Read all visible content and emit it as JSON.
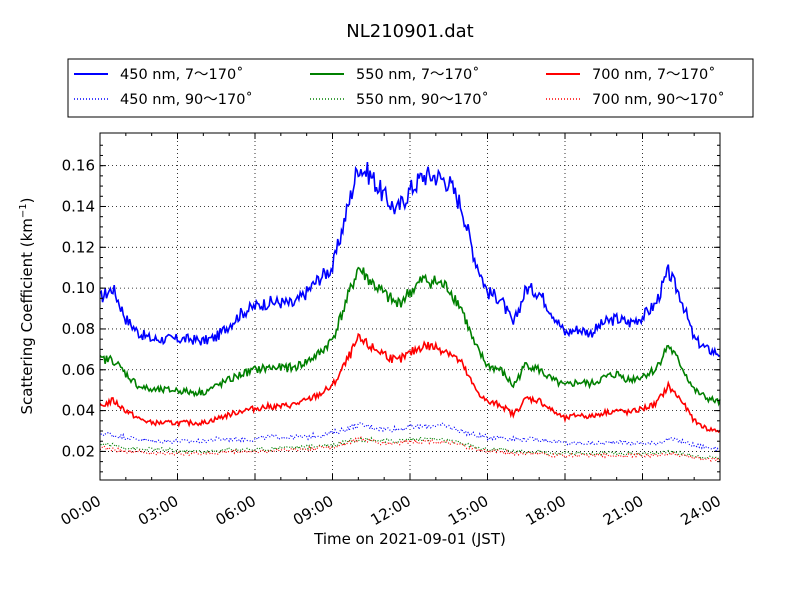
{
  "chart_data": {
    "type": "line",
    "title": "NL210901.dat",
    "xlabel": "Time on 2021-09-01 (JST)",
    "ylabel": "Scattering Coefficient (km",
    "ylabel_superscript": "−1",
    "ylabel_suffix": ")",
    "xlim": [
      "00:00",
      "24:00"
    ],
    "ylim": [
      0.006,
      0.176
    ],
    "x_ticks": [
      "00:00",
      "03:00",
      "06:00",
      "09:00",
      "12:00",
      "15:00",
      "18:00",
      "21:00",
      "24:00"
    ],
    "y_ticks": [
      "0.02",
      "0.04",
      "0.06",
      "0.08",
      "0.10",
      "0.12",
      "0.14",
      "0.16"
    ],
    "grid": true,
    "legend_position": "top-center",
    "x_hours": [
      0,
      0.5,
      1,
      1.5,
      2,
      2.5,
      3,
      3.5,
      4,
      4.5,
      5,
      5.5,
      6,
      6.5,
      7,
      7.5,
      8,
      8.5,
      9,
      9.5,
      10,
      10.5,
      11,
      11.5,
      12,
      12.5,
      13,
      13.5,
      14,
      14.5,
      15,
      15.5,
      16,
      16.5,
      17,
      17.5,
      18,
      18.5,
      19,
      19.5,
      20,
      20.5,
      21,
      21.5,
      22,
      22.5,
      23,
      23.5,
      24
    ],
    "series": [
      {
        "name": "450 nm, 7～170˚",
        "color": "#0000ff",
        "style": "solid",
        "values": [
          0.095,
          0.1,
          0.085,
          0.078,
          0.075,
          0.075,
          0.075,
          0.075,
          0.074,
          0.076,
          0.082,
          0.088,
          0.091,
          0.093,
          0.093,
          0.092,
          0.098,
          0.105,
          0.11,
          0.135,
          0.16,
          0.155,
          0.145,
          0.138,
          0.148,
          0.155,
          0.155,
          0.152,
          0.14,
          0.115,
          0.098,
          0.095,
          0.082,
          0.1,
          0.098,
          0.088,
          0.078,
          0.08,
          0.078,
          0.083,
          0.085,
          0.083,
          0.086,
          0.092,
          0.108,
          0.095,
          0.075,
          0.07,
          0.068
        ]
      },
      {
        "name": "450 nm, 90～170˚",
        "color": "#0000ff",
        "style": "dotted",
        "values": [
          0.029,
          0.028,
          0.027,
          0.026,
          0.025,
          0.025,
          0.025,
          0.025,
          0.025,
          0.026,
          0.026,
          0.026,
          0.026,
          0.027,
          0.027,
          0.027,
          0.027,
          0.028,
          0.029,
          0.031,
          0.033,
          0.032,
          0.031,
          0.031,
          0.032,
          0.032,
          0.033,
          0.032,
          0.03,
          0.028,
          0.027,
          0.027,
          0.026,
          0.026,
          0.026,
          0.025,
          0.024,
          0.024,
          0.024,
          0.024,
          0.025,
          0.024,
          0.024,
          0.024,
          0.026,
          0.025,
          0.023,
          0.022,
          0.021
        ]
      },
      {
        "name": "550 nm, 7～170˚",
        "color": "#008000",
        "style": "solid",
        "values": [
          0.065,
          0.065,
          0.058,
          0.052,
          0.05,
          0.05,
          0.05,
          0.049,
          0.049,
          0.052,
          0.055,
          0.058,
          0.06,
          0.061,
          0.061,
          0.061,
          0.064,
          0.068,
          0.075,
          0.092,
          0.11,
          0.103,
          0.097,
          0.092,
          0.098,
          0.104,
          0.103,
          0.1,
          0.09,
          0.072,
          0.062,
          0.06,
          0.052,
          0.063,
          0.06,
          0.055,
          0.052,
          0.054,
          0.053,
          0.056,
          0.058,
          0.055,
          0.057,
          0.06,
          0.072,
          0.062,
          0.05,
          0.046,
          0.044
        ]
      },
      {
        "name": "550 nm, 90～170˚",
        "color": "#008000",
        "style": "dotted",
        "values": [
          0.024,
          0.023,
          0.022,
          0.021,
          0.021,
          0.021,
          0.02,
          0.02,
          0.02,
          0.02,
          0.021,
          0.021,
          0.021,
          0.021,
          0.022,
          0.022,
          0.022,
          0.023,
          0.023,
          0.025,
          0.026,
          0.026,
          0.025,
          0.025,
          0.026,
          0.026,
          0.026,
          0.025,
          0.024,
          0.022,
          0.021,
          0.021,
          0.02,
          0.02,
          0.02,
          0.019,
          0.019,
          0.019,
          0.019,
          0.019,
          0.019,
          0.019,
          0.019,
          0.019,
          0.02,
          0.019,
          0.018,
          0.017,
          0.017
        ]
      },
      {
        "name": "700 nm, 7～170˚",
        "color": "#ff0000",
        "style": "solid",
        "values": [
          0.042,
          0.045,
          0.04,
          0.036,
          0.034,
          0.034,
          0.034,
          0.034,
          0.034,
          0.036,
          0.038,
          0.04,
          0.041,
          0.042,
          0.042,
          0.043,
          0.045,
          0.048,
          0.052,
          0.063,
          0.075,
          0.071,
          0.068,
          0.064,
          0.068,
          0.072,
          0.071,
          0.069,
          0.063,
          0.051,
          0.044,
          0.043,
          0.038,
          0.046,
          0.045,
          0.04,
          0.036,
          0.038,
          0.037,
          0.039,
          0.04,
          0.039,
          0.041,
          0.043,
          0.052,
          0.045,
          0.035,
          0.031,
          0.03
        ]
      },
      {
        "name": "700 nm, 90～170˚",
        "color": "#ff0000",
        "style": "dotted",
        "values": [
          0.022,
          0.021,
          0.02,
          0.02,
          0.019,
          0.019,
          0.019,
          0.019,
          0.019,
          0.019,
          0.02,
          0.02,
          0.02,
          0.02,
          0.021,
          0.021,
          0.021,
          0.022,
          0.022,
          0.024,
          0.026,
          0.025,
          0.024,
          0.024,
          0.025,
          0.025,
          0.025,
          0.024,
          0.023,
          0.021,
          0.02,
          0.02,
          0.019,
          0.019,
          0.019,
          0.018,
          0.018,
          0.018,
          0.018,
          0.018,
          0.018,
          0.018,
          0.018,
          0.018,
          0.019,
          0.018,
          0.017,
          0.016,
          0.016
        ]
      }
    ]
  }
}
